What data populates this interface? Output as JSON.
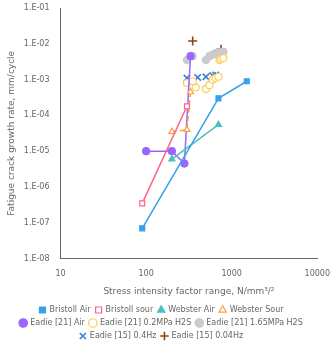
{
  "chart_data": {
    "type": "line",
    "xlabel": "Stress intensity factor range, N/mm³/²",
    "ylabel": "Fatigue crack growth rate, mm/cycle",
    "log": true,
    "xlim": [
      10,
      10000
    ],
    "ylim": [
      1e-08,
      0.1
    ],
    "xticks": [
      10,
      100,
      1000,
      10000
    ],
    "yticks": [
      {
        "value": 1e-08,
        "label": "1.E-08"
      },
      {
        "value": 1e-07,
        "label": "1.E-07"
      },
      {
        "value": 1e-06,
        "label": "1.E-06"
      },
      {
        "value": 1e-05,
        "label": "1.E-05"
      },
      {
        "value": 0.0001,
        "label": "1.E-04"
      },
      {
        "value": 0.001,
        "label": "1.E-03"
      },
      {
        "value": 0.01,
        "label": "1.E-02"
      },
      {
        "value": 0.1,
        "label": "1.E-01"
      }
    ],
    "grid": false,
    "legend": "bottom",
    "series": [
      {
        "name": "Bristoll Air",
        "x": [
          90,
          700,
          1500
        ],
        "values": [
          7e-08,
          0.0003,
          0.0009
        ],
        "marker": "square",
        "line_style": "solid"
      },
      {
        "name": "Bristoll sour",
        "x": [
          90,
          300
        ],
        "values": [
          3.5e-07,
          0.00018
        ],
        "marker": "open-square",
        "line_style": "solid"
      },
      {
        "name": "Webster Air",
        "x": [
          200,
          700
        ],
        "values": [
          6e-06,
          5.5e-05
        ],
        "marker": "triangle",
        "line_style": "solid"
      },
      {
        "name": "Webster Sour",
        "x": [
          200,
          300,
          330
        ],
        "values": [
          3.5e-05,
          4e-05,
          0.00045
        ],
        "marker": "open-triangle",
        "line_style": "dashed"
      },
      {
        "name": "Eadie [21] Air",
        "x": [
          100,
          200,
          280,
          330
        ],
        "values": [
          1e-05,
          1e-05,
          4.5e-06,
          0.0045
        ],
        "marker": "circle",
        "line_style": "solid"
      },
      {
        "name": "Eadie [21] 0.2MPa H2S",
        "x": [
          300,
          350,
          380,
          500,
          550,
          600,
          650,
          700,
          720,
          750,
          800
        ],
        "values": [
          0.0008,
          0.0009,
          0.0006,
          0.00055,
          0.0007,
          0.001,
          0.0011,
          0.0012,
          0.0035,
          0.0038,
          0.004
        ],
        "marker": "open-circle",
        "line_style": "none"
      },
      {
        "name": "Eadie [21] 1.65MPa H2S",
        "x": [
          300,
          350,
          500,
          550,
          600,
          650,
          700,
          750,
          800
        ],
        "values": [
          0.0035,
          0.0045,
          0.0035,
          0.0045,
          0.005,
          0.0055,
          0.0055,
          0.0058,
          0.006
        ],
        "marker": "circle",
        "line_style": "none"
      },
      {
        "name": "Eadie [15] 0.4Hz",
        "x": [
          300,
          400,
          500,
          600,
          650
        ],
        "values": [
          0.0011,
          0.00115,
          0.0012,
          0.0013,
          0.00135
        ],
        "marker": "x",
        "line_style": "none"
      },
      {
        "name": "Eadie [15] 0.04Hz",
        "x": [
          350,
          750
        ],
        "values": [
          0.012,
          0.007
        ],
        "marker": "plus",
        "line_style": "none"
      }
    ]
  }
}
